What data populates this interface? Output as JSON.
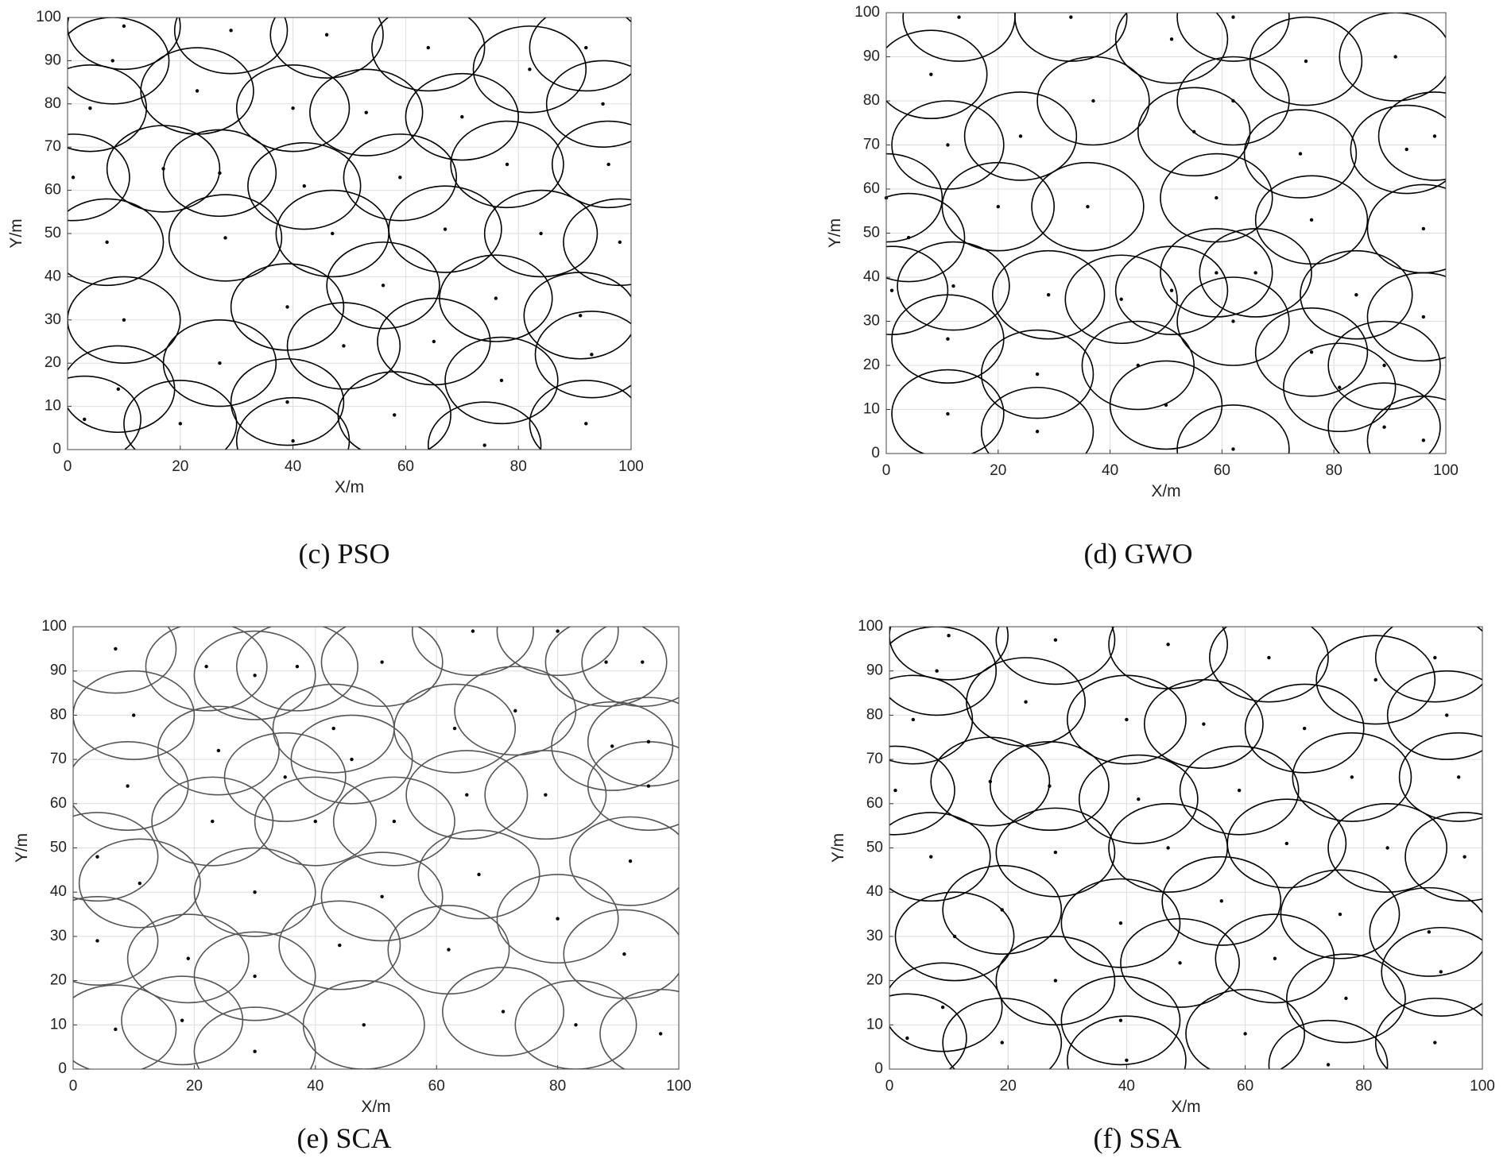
{
  "chart_data": [
    {
      "type": "scatter",
      "title": "(c) PSO",
      "xlabel": "X/m",
      "ylabel": "Y/m",
      "xlim": [
        0,
        100
      ],
      "ylim": [
        0,
        100
      ],
      "xticks": [
        0,
        20,
        40,
        60,
        80,
        100
      ],
      "yticks": [
        0,
        10,
        20,
        30,
        40,
        50,
        60,
        70,
        80,
        90,
        100
      ],
      "grid": true,
      "color": "#000000",
      "radius": 10,
      "x": [
        10,
        8,
        29,
        46,
        64,
        92,
        82,
        23,
        4,
        40,
        53,
        70,
        95,
        1,
        17,
        27,
        42,
        59,
        78,
        96,
        7,
        28,
        47,
        67,
        84,
        98,
        56,
        76,
        39,
        10,
        91,
        49,
        65,
        93,
        27,
        77,
        9,
        39,
        58,
        3,
        20,
        92,
        40,
        74
      ],
      "y": [
        98,
        90,
        97,
        96,
        93,
        93,
        88,
        83,
        79,
        79,
        78,
        77,
        80,
        63,
        65,
        64,
        61,
        63,
        66,
        66,
        48,
        49,
        50,
        51,
        50,
        48,
        38,
        35,
        33,
        30,
        31,
        24,
        25,
        22,
        20,
        16,
        14,
        11,
        8,
        7,
        6,
        6,
        2,
        1
      ]
    },
    {
      "type": "scatter",
      "title": "(d) GWO",
      "xlabel": "X/m",
      "ylabel": "Y/m",
      "xlim": [
        0,
        100
      ],
      "ylim": [
        0,
        100
      ],
      "xticks": [
        0,
        20,
        40,
        60,
        80,
        100
      ],
      "yticks": [
        0,
        10,
        20,
        30,
        40,
        50,
        60,
        70,
        80,
        90,
        100
      ],
      "grid": true,
      "color": "#000000",
      "radius": 10,
      "x": [
        13,
        33,
        62,
        51,
        8,
        75,
        91,
        37,
        62,
        11,
        24,
        55,
        74,
        93,
        98,
        0,
        20,
        36,
        59,
        76,
        96,
        4,
        1,
        12,
        29,
        42,
        51,
        59,
        66,
        84,
        96,
        62,
        11,
        76,
        45,
        27,
        89,
        81,
        50,
        11,
        89,
        27,
        96,
        62
      ],
      "y": [
        99,
        99,
        99,
        94,
        86,
        89,
        90,
        80,
        80,
        70,
        72,
        73,
        68,
        69,
        72,
        58,
        56,
        56,
        58,
        53,
        51,
        49,
        37,
        38,
        36,
        35,
        37,
        41,
        41,
        36,
        31,
        30,
        26,
        23,
        20,
        18,
        20,
        15,
        11,
        9,
        6,
        5,
        3,
        1
      ]
    },
    {
      "type": "scatter",
      "title": "(e) SCA",
      "xlabel": "X/m",
      "ylabel": "Y/m",
      "xlim": [
        0,
        100
      ],
      "ylim": [
        0,
        100
      ],
      "xticks": [
        0,
        20,
        40,
        60,
        80,
        100
      ],
      "yticks": [
        0,
        10,
        20,
        30,
        40,
        50,
        60,
        70,
        80,
        90,
        100
      ],
      "grid": true,
      "color": "#555555",
      "radius": 10,
      "x": [
        7,
        22,
        30,
        37,
        51,
        66,
        80,
        88,
        94,
        10,
        73,
        24,
        63,
        43,
        46,
        35,
        89,
        95,
        9,
        95,
        23,
        40,
        53,
        65,
        78,
        4,
        11,
        30,
        51,
        67,
        92,
        4,
        19,
        44,
        62,
        80,
        91,
        30,
        18,
        7,
        48,
        71,
        83,
        97,
        30
      ],
      "y": [
        95,
        91,
        89,
        91,
        92,
        99,
        99,
        92,
        92,
        80,
        81,
        72,
        77,
        77,
        70,
        66,
        73,
        74,
        64,
        64,
        56,
        56,
        56,
        62,
        62,
        48,
        42,
        40,
        39,
        44,
        47,
        29,
        25,
        28,
        27,
        34,
        26,
        21,
        11,
        9,
        10,
        13,
        10,
        8,
        4
      ]
    },
    {
      "type": "scatter",
      "title": "(f) SSA",
      "xlabel": "X/m",
      "ylabel": "Y/m",
      "xlim": [
        0,
        100
      ],
      "ylim": [
        0,
        100
      ],
      "xticks": [
        0,
        20,
        40,
        60,
        80,
        100
      ],
      "yticks": [
        0,
        10,
        20,
        30,
        40,
        50,
        60,
        70,
        80,
        90,
        100
      ],
      "grid": true,
      "color": "#000000",
      "radius": 10,
      "x": [
        10,
        8,
        28,
        47,
        64,
        92,
        82,
        23,
        4,
        40,
        53,
        70,
        94,
        1,
        17,
        27,
        42,
        59,
        78,
        96,
        7,
        28,
        47,
        67,
        84,
        97,
        19,
        56,
        76,
        39,
        11,
        91,
        49,
        65,
        93,
        28,
        77,
        9,
        39,
        60,
        3,
        19,
        92,
        40,
        74
      ],
      "y": [
        98,
        90,
        97,
        96,
        93,
        93,
        88,
        83,
        79,
        79,
        78,
        77,
        80,
        63,
        65,
        64,
        61,
        63,
        66,
        66,
        48,
        49,
        50,
        51,
        50,
        48,
        36,
        38,
        35,
        33,
        30,
        31,
        24,
        25,
        22,
        20,
        16,
        14,
        11,
        8,
        7,
        6,
        6,
        2,
        1
      ]
    }
  ]
}
